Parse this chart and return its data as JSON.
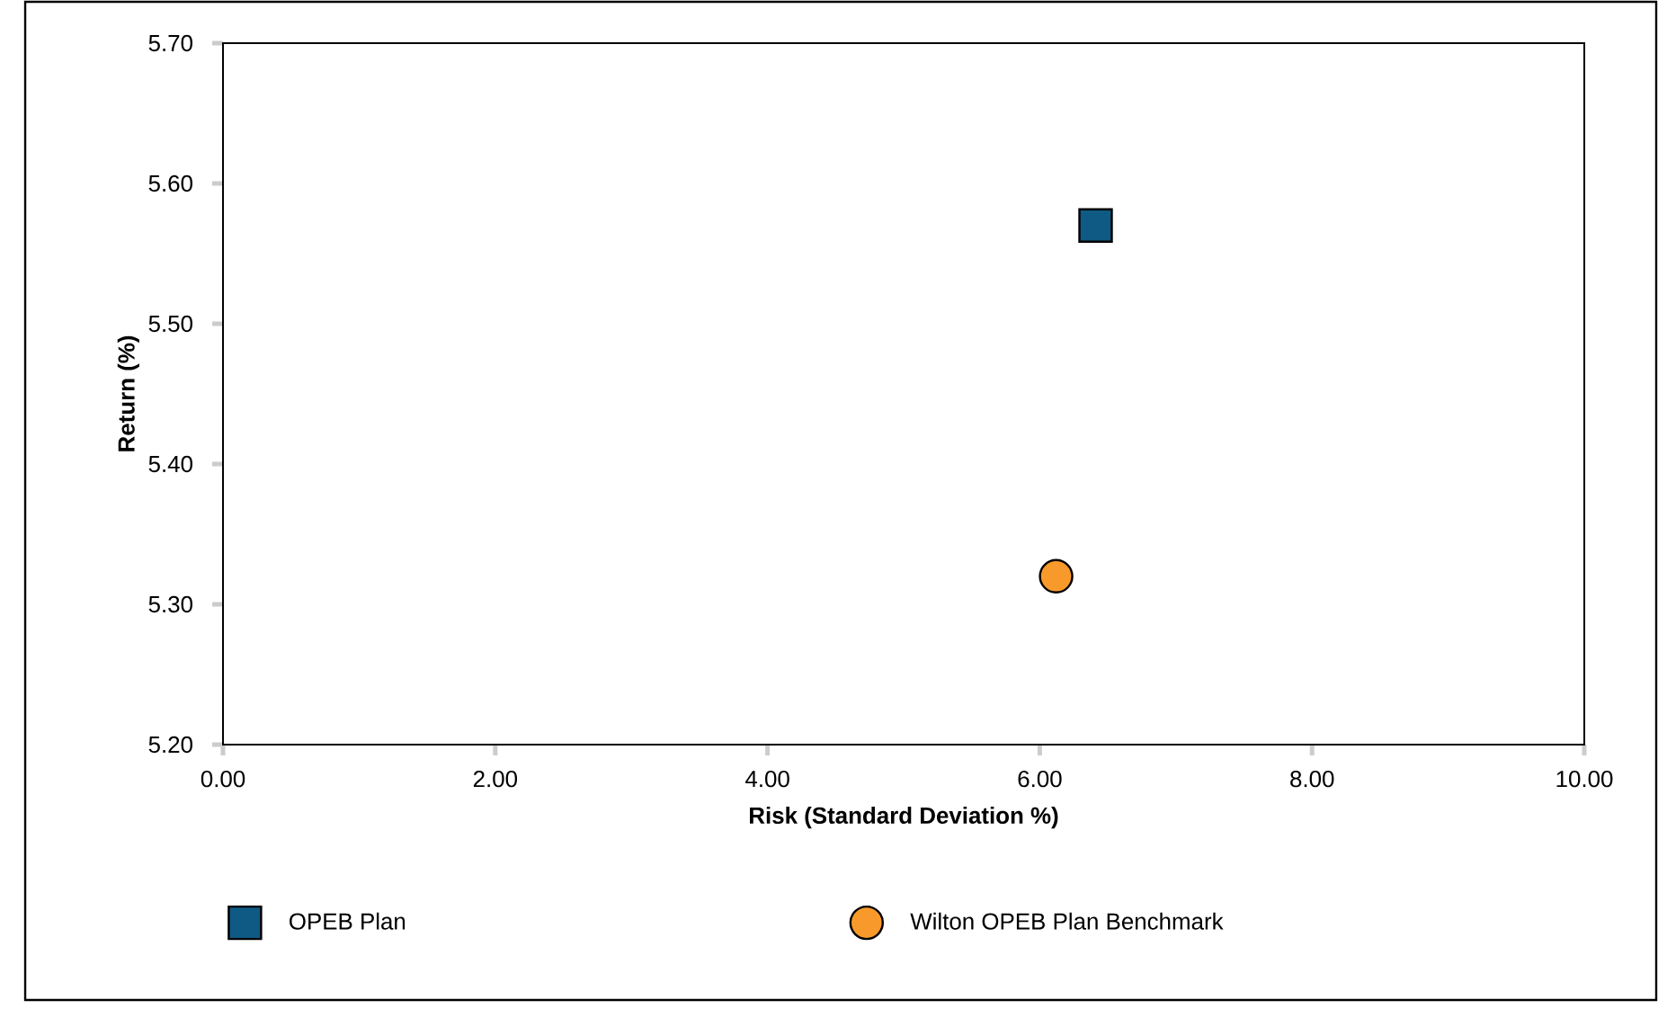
{
  "chart_data": {
    "type": "scatter",
    "xlabel": "Risk (Standard Deviation %)",
    "ylabel": "Return (%)",
    "xlim": [
      0,
      10
    ],
    "ylim": [
      5.2,
      5.7
    ],
    "xticks": [
      {
        "value": 0,
        "label": "0.00"
      },
      {
        "value": 2,
        "label": "2.00"
      },
      {
        "value": 4,
        "label": "4.00"
      },
      {
        "value": 6,
        "label": "6.00"
      },
      {
        "value": 8,
        "label": "8.00"
      },
      {
        "value": 10,
        "label": "10.00"
      }
    ],
    "yticks": [
      {
        "value": 5.2,
        "label": "5.20"
      },
      {
        "value": 5.3,
        "label": "5.30"
      },
      {
        "value": 5.4,
        "label": "5.40"
      },
      {
        "value": 5.5,
        "label": "5.50"
      },
      {
        "value": 5.6,
        "label": "5.60"
      },
      {
        "value": 5.7,
        "label": "5.70"
      }
    ],
    "grid": false,
    "legend": "bottom",
    "series": [
      {
        "name": "OPEB Plan",
        "color": "#0f5a84",
        "marker": "square",
        "x": [
          6.41
        ],
        "values": [
          5.57
        ]
      },
      {
        "name": "Wilton OPEB Plan Benchmark",
        "color": "#f89a2b",
        "marker": "circle",
        "x": [
          6.12
        ],
        "values": [
          5.32
        ]
      }
    ]
  }
}
